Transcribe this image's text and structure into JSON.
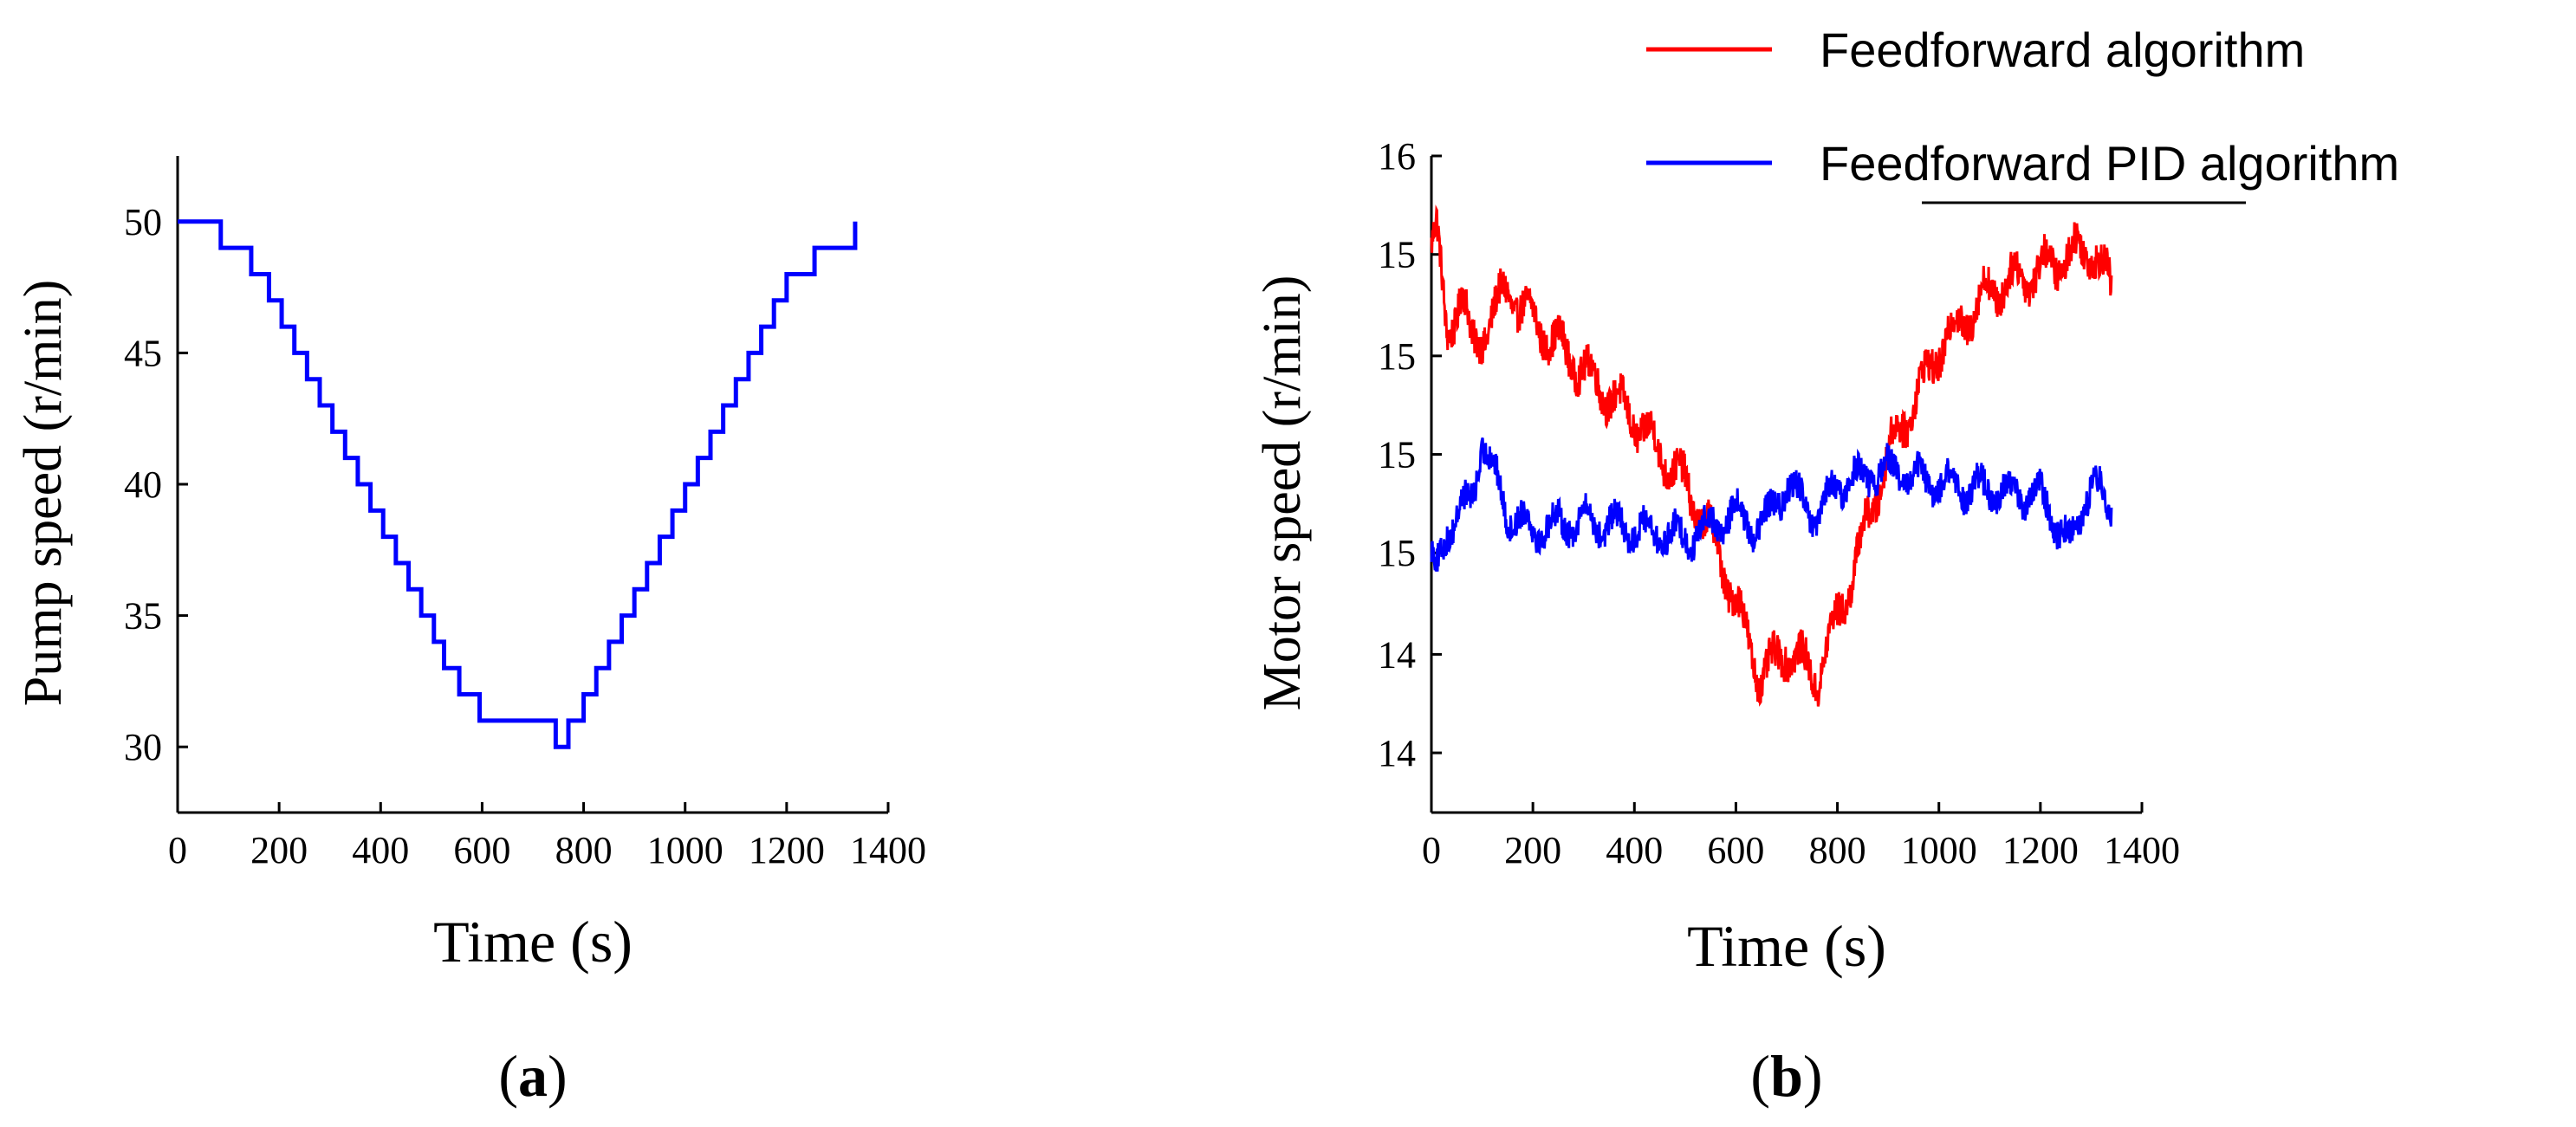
{
  "chart_data": [
    {
      "id": "a",
      "type": "line",
      "panel_label": "(a)",
      "panel_letter": "a",
      "xlabel": "Time (s)",
      "ylabel": "Pump speed (r/min)",
      "xlim": [
        0,
        1400
      ],
      "ylim": [
        27.5,
        52.5
      ],
      "xticks": [
        0,
        200,
        400,
        600,
        800,
        1000,
        1200,
        1400
      ],
      "yticks": [
        30,
        35,
        40,
        45,
        50
      ],
      "ytick_labels": [
        "30",
        "35",
        "40",
        "45",
        "50"
      ],
      "step": true,
      "series": [
        {
          "name": "Pump speed",
          "color": "#0000ff",
          "x": [
            0,
            85,
            145,
            180,
            205,
            230,
            255,
            280,
            305,
            330,
            355,
            380,
            405,
            430,
            455,
            480,
            505,
            525,
            555,
            595,
            745,
            770,
            800,
            825,
            850,
            875,
            900,
            925,
            950,
            975,
            1000,
            1025,
            1050,
            1075,
            1100,
            1125,
            1150,
            1175,
            1200,
            1255,
            1335
          ],
          "y": [
            50,
            49,
            48,
            47,
            46,
            45,
            44,
            43,
            42,
            41,
            40,
            39,
            38,
            37,
            36,
            35,
            34,
            33,
            32,
            31,
            30,
            31,
            32,
            33,
            34,
            35,
            36,
            37,
            38,
            39,
            40,
            41,
            42,
            43,
            44,
            45,
            46,
            47,
            48,
            49,
            50
          ]
        }
      ]
    },
    {
      "id": "b",
      "type": "line",
      "panel_label": "(b)",
      "panel_letter": "b",
      "xlabel": "Time (s)",
      "ylabel": "Motor speed (r/min)",
      "xlim": [
        0,
        1400
      ],
      "ylim": [
        13.8,
        16.0
      ],
      "xticks": [
        0,
        200,
        400,
        600,
        800,
        1000,
        1200,
        1400
      ],
      "yticks": [
        14.0,
        14.33,
        14.67,
        15.0,
        15.33,
        15.67,
        16.0
      ],
      "ytick_labels": [
        "14",
        "14",
        "15",
        "15",
        "15",
        "15",
        "16"
      ],
      "legend": {
        "position": "top-right",
        "entries": [
          {
            "label": "Feedforward algorithm",
            "color": "#ff0000"
          },
          {
            "label": "Feedforward PID algorithm",
            "color": "#0000ff"
          }
        ]
      },
      "series": [
        {
          "name": "Feedforward algorithm",
          "color": "#ff0000",
          "trend_x": [
            0,
            10,
            30,
            60,
            80,
            150,
            200,
            300,
            400,
            500,
            560,
            620,
            650,
            700,
            760,
            820,
            900,
            1000,
            1100,
            1200,
            1300,
            1340
          ],
          "trend_y": [
            15.7,
            15.75,
            15.4,
            15.55,
            15.35,
            15.55,
            15.45,
            15.28,
            15.12,
            14.9,
            14.7,
            14.4,
            14.25,
            14.35,
            14.25,
            14.55,
            15.0,
            15.35,
            15.55,
            15.62,
            15.7,
            15.55
          ],
          "noise": 0.06,
          "samples": 1340
        },
        {
          "name": "Feedforward PID algorithm",
          "color": "#0000ff",
          "trend_x": [
            0,
            10,
            30,
            80,
            100,
            150,
            200,
            300,
            400,
            500,
            600,
            650,
            700,
            760,
            800,
            900,
            1000,
            1100,
            1200,
            1260,
            1300,
            1340
          ],
          "trend_y": [
            14.65,
            14.6,
            14.75,
            14.85,
            15.05,
            14.8,
            14.75,
            14.78,
            14.75,
            14.72,
            14.8,
            14.75,
            14.9,
            14.78,
            14.9,
            14.95,
            14.9,
            14.88,
            14.86,
            14.7,
            14.92,
            14.8
          ],
          "noise": 0.05,
          "samples": 1340
        }
      ]
    }
  ]
}
